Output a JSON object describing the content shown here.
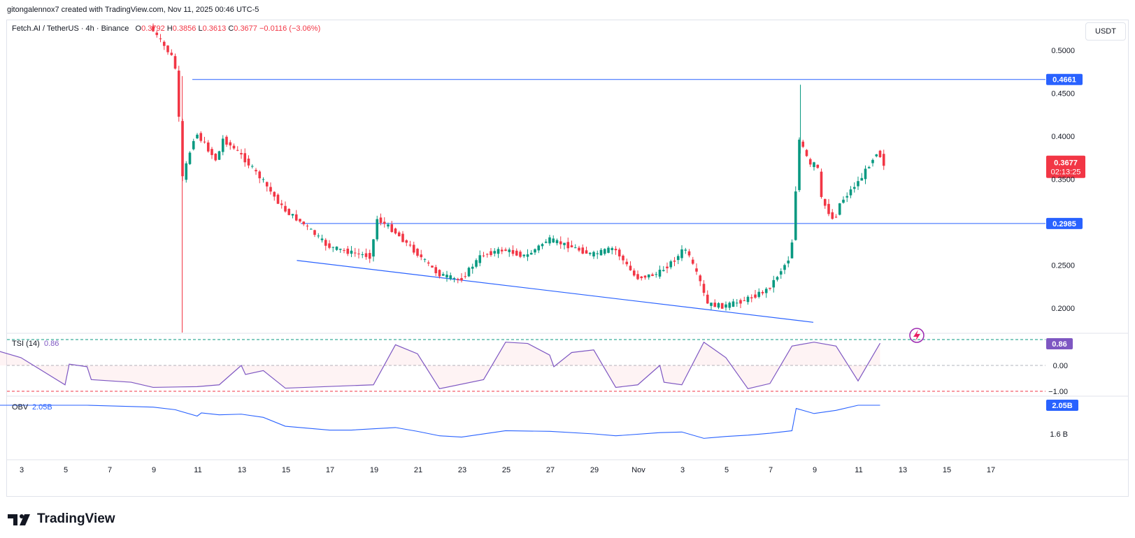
{
  "caption": "gitongalennox7 created with TradingView.com, Nov 11, 2025 00:46 UTC-5",
  "legend": {
    "symbol": "Fetch.AI / TetherUS · 4h · Binance",
    "o_label": "O",
    "o_value": "0.3792",
    "h_label": "H",
    "h_value": "0.3856",
    "l_label": "L",
    "l_value": "0.3613",
    "c_label": "C",
    "c_value": "0.3677",
    "change": "−0.0116 (−3.06%)"
  },
  "currency_button": "USDT",
  "footer": {
    "brand": "TradingView"
  },
  "colors": {
    "up": "#089981",
    "down": "#f23645",
    "line": "#2962ff",
    "tsi": "#7e57c2",
    "obv": "#2962ff"
  },
  "chart_data": [
    {
      "type": "candlestick",
      "ylim": [
        0.175,
        0.525
      ],
      "y_ticks": [
        "0.5000",
        "0.4500",
        "0.4000",
        "0.3500",
        "0.2500",
        "0.2000"
      ],
      "x_ticks": [
        "3",
        "5",
        "7",
        "9",
        "11",
        "13",
        "15",
        "17",
        "19",
        "21",
        "23",
        "25",
        "27",
        "29",
        "Nov",
        "3",
        "5",
        "7",
        "9",
        "11",
        "13",
        "15",
        "17"
      ],
      "horizontal_levels": [
        {
          "value": 0.4661,
          "label": "0.4661"
        },
        {
          "value": 0.2985,
          "label": "0.2985"
        }
      ],
      "current_price": {
        "value": 0.3677,
        "label": "0.3677",
        "countdown": "02:13:25"
      },
      "trendline_points": [
        {
          "x": "Oct 16",
          "y": 0.2555
        },
        {
          "x": "Nov 6",
          "y": 0.1835
        }
      ],
      "price_path": [
        [
          "Oct 9",
          0.525
        ],
        [
          "Oct 10",
          0.49
        ],
        [
          "Oct 10",
          0.465
        ],
        [
          "Oct 10",
          0.345
        ],
        [
          "Oct 11",
          0.405
        ],
        [
          "Oct 12",
          0.37
        ],
        [
          "Oct 12",
          0.398
        ],
        [
          "Oct 13",
          0.38
        ],
        [
          "Oct 14",
          0.35
        ],
        [
          "Oct 15",
          0.315
        ],
        [
          "Oct 16",
          0.296
        ],
        [
          "Oct 17",
          0.272
        ],
        [
          "Oct 18",
          0.265
        ],
        [
          "Oct 19",
          0.26
        ],
        [
          "Oct 19",
          0.305
        ],
        [
          "Oct 20",
          0.29
        ],
        [
          "Oct 21",
          0.265
        ],
        [
          "Oct 22",
          0.24
        ],
        [
          "Oct 23",
          0.232
        ],
        [
          "Oct 24",
          0.262
        ],
        [
          "Oct 25",
          0.268
        ],
        [
          "Oct 26",
          0.26
        ],
        [
          "Oct 27",
          0.28
        ],
        [
          "Oct 28",
          0.272
        ],
        [
          "Oct 29",
          0.262
        ],
        [
          "Oct 30",
          0.27
        ],
        [
          "Oct 31",
          0.235
        ],
        [
          "Nov 1",
          0.24
        ],
        [
          "Nov 2",
          0.262
        ],
        [
          "Nov 2",
          0.272
        ],
        [
          "Nov 3",
          0.225
        ],
        [
          "Nov 3",
          0.205
        ],
        [
          "Nov 4",
          0.202
        ],
        [
          "Nov 5",
          0.21
        ],
        [
          "Nov 6",
          0.222
        ],
        [
          "Nov 7",
          0.26
        ],
        [
          "Nov 7",
          0.3
        ],
        [
          "Nov 7",
          0.4
        ],
        [
          "Nov 8",
          0.36
        ],
        [
          "Nov 8",
          0.38
        ],
        [
          "Nov 8",
          0.33
        ],
        [
          "Nov 9",
          0.3
        ],
        [
          "Nov 9",
          0.32
        ],
        [
          "Nov 10",
          0.345
        ],
        [
          "Nov 10",
          0.35
        ],
        [
          "Nov 11",
          0.385
        ],
        [
          "Nov 11",
          0.3677
        ]
      ]
    },
    {
      "type": "line",
      "name": "TSI (14)",
      "last_value": "0.86",
      "ylim": [
        -1.1,
        1.1
      ],
      "y_ticks": [
        "0.00",
        "−1.00"
      ],
      "reference_lines": [
        1.0,
        0.0,
        -1.0
      ],
      "points": [
        [
          "Oct 2",
          0.55
        ],
        [
          "Oct 3",
          0.3
        ],
        [
          "Oct 5",
          -0.75
        ],
        [
          "Oct 5",
          0.05
        ],
        [
          "Oct 6",
          -0.05
        ],
        [
          "Oct 6",
          -0.55
        ],
        [
          "Oct 8",
          -0.65
        ],
        [
          "Oct 9",
          -0.85
        ],
        [
          "Oct 11",
          -0.82
        ],
        [
          "Oct 12",
          -0.75
        ],
        [
          "Oct 13",
          0.0
        ],
        [
          "Oct 13",
          -0.35
        ],
        [
          "Oct 14",
          -0.2
        ],
        [
          "Oct 15",
          -0.88
        ],
        [
          "Oct 19",
          -0.75
        ],
        [
          "Oct 20",
          0.8
        ],
        [
          "Oct 21",
          0.45
        ],
        [
          "Oct 22",
          -0.9
        ],
        [
          "Oct 24",
          -0.55
        ],
        [
          "Oct 25",
          0.9
        ],
        [
          "Oct 26",
          0.85
        ],
        [
          "Oct 27",
          0.4
        ],
        [
          "Oct 27",
          -0.05
        ],
        [
          "Oct 28",
          0.5
        ],
        [
          "Oct 29",
          0.6
        ],
        [
          "Oct 30",
          -0.85
        ],
        [
          "Oct 31",
          -0.75
        ],
        [
          "Nov 1",
          0.0
        ],
        [
          "Nov 1",
          -0.65
        ],
        [
          "Nov 2",
          -0.75
        ],
        [
          "Nov 3",
          0.9
        ],
        [
          "Nov 4",
          0.3
        ],
        [
          "Nov 5",
          -0.9
        ],
        [
          "Nov 6",
          -0.7
        ],
        [
          "Nov 7",
          0.75
        ],
        [
          "Nov 8",
          0.9
        ],
        [
          "Nov 9",
          0.75
        ],
        [
          "Nov 10",
          -0.6
        ],
        [
          "Nov 11",
          0.86
        ]
      ]
    },
    {
      "type": "line",
      "name": "OBV",
      "last_value": "2.05B",
      "unit": "B",
      "ylim": [
        1.36,
        2.22
      ],
      "y_ticks": [
        "1.6 B"
      ],
      "points": [
        [
          "Oct 2",
          2.05
        ],
        [
          "Oct 6",
          2.05
        ],
        [
          "Oct 9",
          2.02
        ],
        [
          "Oct 10",
          1.98
        ],
        [
          "Oct 11",
          1.88
        ],
        [
          "Oct 11",
          1.93
        ],
        [
          "Oct 12",
          1.9
        ],
        [
          "Oct 13",
          1.91
        ],
        [
          "Oct 14",
          1.86
        ],
        [
          "Oct 15",
          1.72
        ],
        [
          "Oct 17",
          1.66
        ],
        [
          "Oct 18",
          1.66
        ],
        [
          "Oct 19",
          1.68
        ],
        [
          "Oct 20",
          1.7
        ],
        [
          "Oct 21",
          1.64
        ],
        [
          "Oct 22",
          1.57
        ],
        [
          "Oct 23",
          1.55
        ],
        [
          "Oct 25",
          1.65
        ],
        [
          "Oct 27",
          1.64
        ],
        [
          "Oct 29",
          1.6
        ],
        [
          "Oct 30",
          1.57
        ],
        [
          "Nov 1",
          1.62
        ],
        [
          "Nov 2",
          1.63
        ],
        [
          "Nov 3",
          1.53
        ],
        [
          "Nov 4",
          1.56
        ],
        [
          "Nov 5",
          1.58
        ],
        [
          "Nov 6",
          1.61
        ],
        [
          "Nov 7",
          1.65
        ],
        [
          "Nov 7",
          2.0
        ],
        [
          "Nov 8",
          1.92
        ],
        [
          "Nov 9",
          1.97
        ],
        [
          "Nov 10",
          2.05
        ],
        [
          "Nov 11",
          2.05
        ]
      ]
    }
  ]
}
